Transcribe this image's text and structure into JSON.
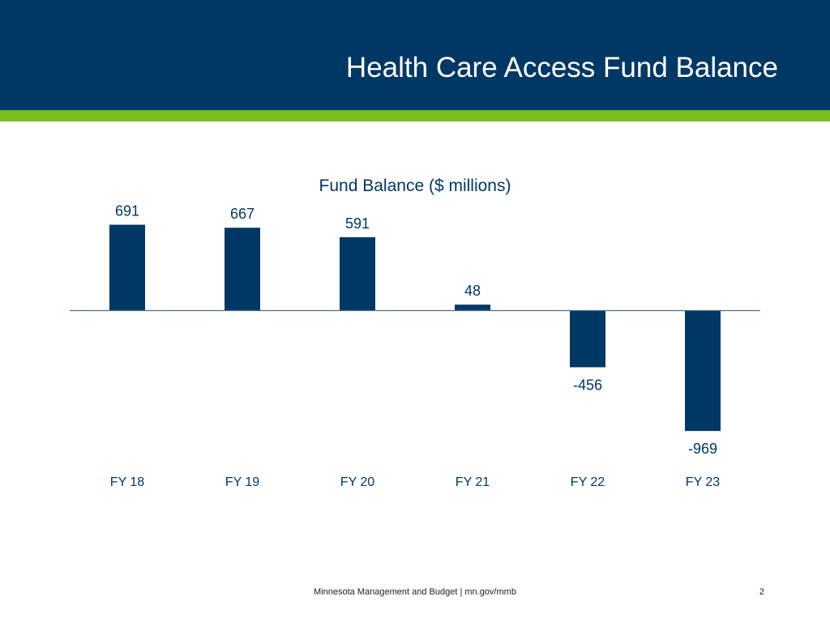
{
  "slide": {
    "title": "Health Care Access Fund Balance",
    "footer": "Minnesota Management and Budget  |  mn.gov/mmb",
    "page_number": "2"
  },
  "colors": {
    "header_bg": "#003865",
    "accent": "#78be21",
    "bar": "#003865",
    "text": "#003865"
  },
  "chart_data": {
    "type": "bar",
    "title": "Fund Balance ($ millions)",
    "categories": [
      "FY 18",
      "FY 19",
      "FY 20",
      "FY 21",
      "FY 22",
      "FY 23"
    ],
    "values": [
      691,
      667,
      591,
      48,
      -456,
      -969
    ],
    "data_labels": [
      "691",
      "667",
      "591",
      "48",
      "-456",
      "-969"
    ],
    "xlabel": "",
    "ylabel": "",
    "ylim": [
      -969,
      691
    ],
    "grid": false,
    "legend": "none"
  }
}
